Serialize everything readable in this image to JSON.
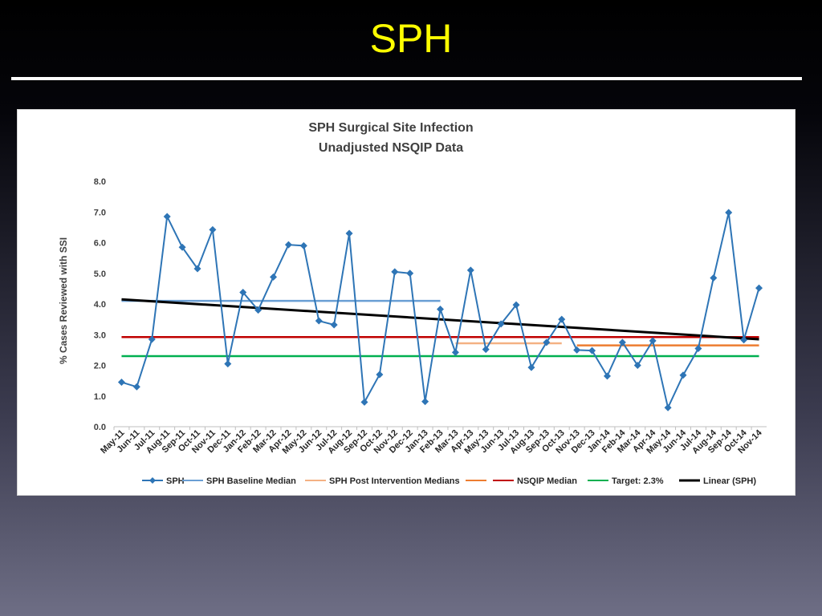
{
  "slide": {
    "title": "SPH",
    "title_color": "#ffff00",
    "rule_color": "#ffffff"
  },
  "chart_data": {
    "type": "line",
    "title": "SPH Surgical Site Infection",
    "subtitle": "Unadjusted NSQIP Data",
    "xlabel": "",
    "ylabel": "% Cases Reviewed with SSI",
    "ylim": [
      0,
      8
    ],
    "yticks": [
      "0.0",
      "1.0",
      "2.0",
      "3.0",
      "4.0",
      "5.0",
      "6.0",
      "7.0",
      "8.0"
    ],
    "grid": false,
    "legend_position": "bottom",
    "categories": [
      "May-11",
      "Jun-11",
      "Jul-11",
      "Aug-11",
      "Sep-11",
      "Oct-11",
      "Nov-11",
      "Dec-11",
      "Jan-12",
      "Feb-12",
      "Mar-12",
      "Apr-12",
      "May-12",
      "Jun-12",
      "Jul-12",
      "Aug-12",
      "Sep-12",
      "Oct-12",
      "Nov-12",
      "Dec-12",
      "Jan-13",
      "Feb-13",
      "Mar-13",
      "Apr-13",
      "May-13",
      "Jun-13",
      "Jul-13",
      "Aug-13",
      "Sep-13",
      "Oct-13",
      "Nov-13",
      "Dec-13",
      "Jan-14",
      "Feb-14",
      "Mar-14",
      "Apr-14",
      "May-14",
      "Jun-14",
      "Jul-14",
      "Aug-14",
      "Sep-14",
      "Oct-14",
      "Nov-14"
    ],
    "series": [
      {
        "name": "SPH",
        "color": "#2e75b6",
        "marker": "diamond",
        "values": [
          1.45,
          1.3,
          2.85,
          6.85,
          5.85,
          5.15,
          6.42,
          2.05,
          4.38,
          3.8,
          4.88,
          5.93,
          5.9,
          3.45,
          3.32,
          6.3,
          0.8,
          1.7,
          5.05,
          5.0,
          0.82,
          3.83,
          2.42,
          5.1,
          2.52,
          3.35,
          3.97,
          1.93,
          2.75,
          3.5,
          2.5,
          2.48,
          1.65,
          2.75,
          2.0,
          2.8,
          0.62,
          1.68,
          2.55,
          4.85,
          6.98,
          2.83,
          4.52
        ]
      },
      {
        "name": "SPH Baseline Median",
        "color": "#6a9fd4",
        "x_start": "May-11",
        "x_end": "Feb-13",
        "value": 4.1
      },
      {
        "name": "SPH Post Intervention Medians",
        "color": "#f4b183",
        "x_start": "Mar-13",
        "x_end": "Oct-13",
        "value": 2.72
      },
      {
        "name": "",
        "color": "#ed7d31",
        "x_start": "Nov-13",
        "x_end": "Nov-14",
        "value": 2.65
      },
      {
        "name": "NSQIP Median",
        "color": "#c00000",
        "x_start": "May-11",
        "x_end": "Nov-14",
        "value": 2.92
      },
      {
        "name": "Target: 2.3%",
        "color": "#00b050",
        "x_start": "May-11",
        "x_end": "Nov-14",
        "value": 2.3
      },
      {
        "name": "Linear (SPH)",
        "color": "#000000",
        "x_start": "May-11",
        "x_end": "Nov-14",
        "start_value": 4.15,
        "end_value": 2.85
      }
    ]
  }
}
